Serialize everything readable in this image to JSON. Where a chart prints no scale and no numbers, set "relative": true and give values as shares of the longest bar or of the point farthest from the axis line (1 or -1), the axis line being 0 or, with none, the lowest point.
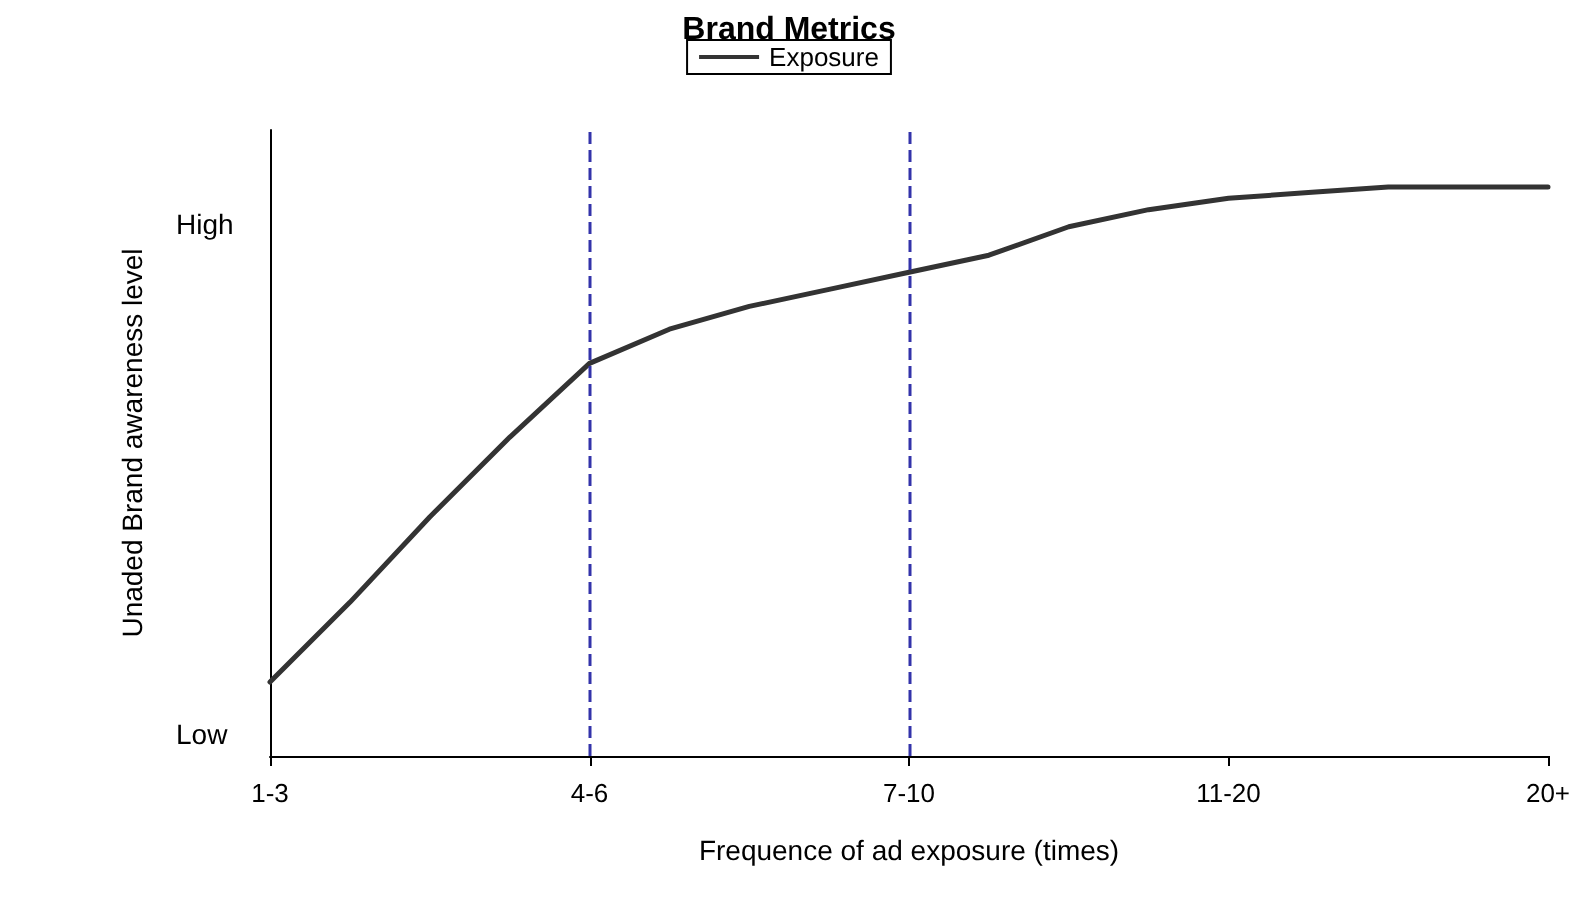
{
  "chart_data": {
    "type": "line",
    "title": "Brand Metrics",
    "xlabel": "Frequence of ad exposure (times)",
    "ylabel": "Unaded Brand awareness level",
    "relative": true,
    "categories": [
      "1-3",
      null,
      null,
      null,
      "4-6",
      null,
      null,
      null,
      "7-10",
      null,
      null,
      null,
      "11-20",
      null,
      null,
      null,
      "20+"
    ],
    "series": [
      {
        "name": "Exposure",
        "color": "#333333",
        "values": [
          0.13,
          0.27,
          0.42,
          0.56,
          0.69,
          0.75,
          0.79,
          0.82,
          0.85,
          0.88,
          0.93,
          0.96,
          0.98,
          0.99,
          1,
          1,
          1
        ]
      }
    ],
    "ref_lines": [
      {
        "axis": "x",
        "value": "4-6",
        "color": "#3333aa",
        "line_style": "dashed"
      },
      {
        "axis": "x",
        "value": "7-10",
        "color": "#3333aa",
        "line_style": "dashed"
      }
    ],
    "annotations": [
      "High",
      "Low"
    ],
    "legend": "top",
    "marker": "none",
    "line_style": "solid"
  }
}
